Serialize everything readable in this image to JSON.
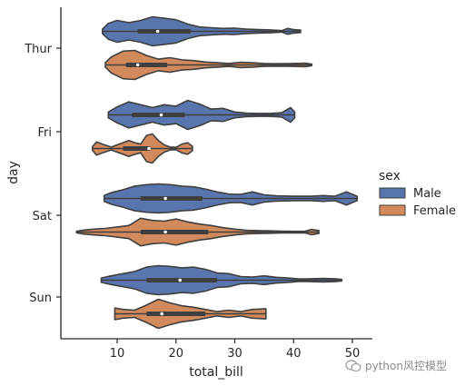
{
  "watermark": "python风控模型",
  "chart_data": {
    "type": "violin",
    "orientation": "horizontal",
    "xlabel": "total_bill",
    "ylabel": "day",
    "xlim": [
      1,
      52
    ],
    "x_ticks": [
      10,
      20,
      30,
      40,
      50
    ],
    "categories": [
      "Thur",
      "Fri",
      "Sat",
      "Sun"
    ],
    "hue_title": "sex",
    "legend_position": "right",
    "series": [
      {
        "name": "Male",
        "color": "#5875ad",
        "violins": [
          {
            "day": "Thur",
            "min": 7.5,
            "q1": 13.5,
            "median": 16.9,
            "q3": 22.5,
            "max": 41.2,
            "density": [
              [
                7.5,
                0.15
              ],
              [
                8.5,
                0.55
              ],
              [
                10,
                0.75
              ],
              [
                12,
                0.6
              ],
              [
                14,
                0.75
              ],
              [
                16,
                1.0
              ],
              [
                18,
                0.9
              ],
              [
                20,
                0.8
              ],
              [
                22,
                0.5
              ],
              [
                24,
                0.3
              ],
              [
                26,
                0.25
              ],
              [
                28,
                0.2
              ],
              [
                30,
                0.22
              ],
              [
                32,
                0.15
              ],
              [
                34,
                0.12
              ],
              [
                36,
                0.1
              ],
              [
                38,
                0.05
              ],
              [
                39,
                0.2
              ],
              [
                40,
                0.12
              ],
              [
                41.2,
                0.08
              ]
            ]
          },
          {
            "day": "Fri",
            "min": 8.5,
            "q1": 12.5,
            "median": 17.5,
            "q3": 21.5,
            "max": 40.2,
            "density": [
              [
                8.5,
                0.2
              ],
              [
                10,
                0.55
              ],
              [
                12,
                0.9
              ],
              [
                14,
                0.7
              ],
              [
                16,
                0.5
              ],
              [
                18,
                0.7
              ],
              [
                20,
                0.6
              ],
              [
                22,
                1.0
              ],
              [
                24,
                0.75
              ],
              [
                26,
                0.4
              ],
              [
                28,
                0.45
              ],
              [
                30,
                0.2
              ],
              [
                32,
                0.12
              ],
              [
                34,
                0.1
              ],
              [
                36,
                0.1
              ],
              [
                38,
                0.15
              ],
              [
                39.5,
                0.5
              ],
              [
                40.2,
                0.2
              ]
            ]
          },
          {
            "day": "Sat",
            "min": 7.8,
            "q1": 14,
            "median": 18.2,
            "q3": 24.5,
            "max": 50.8,
            "density": [
              [
                7.8,
                0.2
              ],
              [
                9,
                0.4
              ],
              [
                11,
                0.6
              ],
              [
                13,
                0.85
              ],
              [
                15,
                0.95
              ],
              [
                17,
                1.0
              ],
              [
                19,
                0.95
              ],
              [
                21,
                0.85
              ],
              [
                23,
                0.8
              ],
              [
                25,
                0.65
              ],
              [
                27,
                0.45
              ],
              [
                29,
                0.3
              ],
              [
                31,
                0.28
              ],
              [
                33,
                0.45
              ],
              [
                35,
                0.25
              ],
              [
                37,
                0.18
              ],
              [
                40,
                0.15
              ],
              [
                43,
                0.15
              ],
              [
                45,
                0.2
              ],
              [
                47,
                0.15
              ],
              [
                49,
                0.45
              ],
              [
                50.8,
                0.15
              ]
            ]
          },
          {
            "day": "Sun",
            "min": 7.3,
            "q1": 15,
            "median": 20.7,
            "q3": 27,
            "max": 48.2,
            "density": [
              [
                7.3,
                0.15
              ],
              [
                9,
                0.3
              ],
              [
                11,
                0.45
              ],
              [
                13,
                0.6
              ],
              [
                15,
                0.9
              ],
              [
                17,
                1.0
              ],
              [
                19,
                0.95
              ],
              [
                21,
                0.85
              ],
              [
                23,
                0.9
              ],
              [
                25,
                0.75
              ],
              [
                27,
                0.5
              ],
              [
                29,
                0.45
              ],
              [
                31,
                0.25
              ],
              [
                33,
                0.22
              ],
              [
                35,
                0.3
              ],
              [
                37,
                0.2
              ],
              [
                39,
                0.15
              ],
              [
                41,
                0.08
              ],
              [
                43,
                0.1
              ],
              [
                45,
                0.12
              ],
              [
                47,
                0.1
              ],
              [
                48.2,
                0.05
              ]
            ]
          }
        ]
      },
      {
        "name": "Female",
        "color": "#d28a5d",
        "violins": [
          {
            "day": "Thur",
            "min": 8,
            "q1": 11.5,
            "median": 13.5,
            "q3": 18.5,
            "max": 43.1,
            "density": [
              [
                8,
                0.15
              ],
              [
                9,
                0.55
              ],
              [
                11,
                0.95
              ],
              [
                13,
                1.0
              ],
              [
                15,
                0.65
              ],
              [
                17,
                0.4
              ],
              [
                19,
                0.5
              ],
              [
                21,
                0.35
              ],
              [
                23,
                0.3
              ],
              [
                25,
                0.2
              ],
              [
                27,
                0.15
              ],
              [
                29,
                0.1
              ],
              [
                31,
                0.18
              ],
              [
                33,
                0.15
              ],
              [
                35,
                0.1
              ],
              [
                37,
                0.08
              ],
              [
                40,
                0.1
              ],
              [
                42,
                0.12
              ],
              [
                43.1,
                0.05
              ]
            ]
          },
          {
            "day": "Fri",
            "min": 5.8,
            "q1": 11,
            "median": 15.4,
            "q3": 15.6,
            "max": 22.8,
            "density": [
              [
                5.8,
                0.12
              ],
              [
                6.5,
                0.45
              ],
              [
                7.5,
                0.3
              ],
              [
                9,
                0.1
              ],
              [
                11,
                0.4
              ],
              [
                12,
                0.55
              ],
              [
                13,
                0.4
              ],
              [
                14,
                0.3
              ],
              [
                15,
                0.9
              ],
              [
                16,
                1.0
              ],
              [
                17,
                0.55
              ],
              [
                18,
                0.25
              ],
              [
                19,
                0.1
              ],
              [
                20,
                0.08
              ],
              [
                21,
                0.3
              ],
              [
                22,
                0.4
              ],
              [
                22.8,
                0.15
              ]
            ]
          },
          {
            "day": "Sat",
            "min": 3.1,
            "q1": 14,
            "median": 18.2,
            "q3": 25.5,
            "max": 44.3,
            "density": [
              [
                3.1,
                0.05
              ],
              [
                4,
                0.12
              ],
              [
                6,
                0.2
              ],
              [
                8,
                0.25
              ],
              [
                10,
                0.35
              ],
              [
                12,
                0.45
              ],
              [
                14,
                0.95
              ],
              [
                16,
                0.8
              ],
              [
                18,
                0.75
              ],
              [
                20,
                0.9
              ],
              [
                22,
                0.7
              ],
              [
                24,
                0.55
              ],
              [
                26,
                0.45
              ],
              [
                28,
                0.3
              ],
              [
                30,
                0.2
              ],
              [
                32,
                0.12
              ],
              [
                34,
                0.1
              ],
              [
                36,
                0.08
              ],
              [
                38,
                0.06
              ],
              [
                40,
                0.05
              ],
              [
                42,
                0.06
              ],
              [
                43,
                0.18
              ],
              [
                44.3,
                0.1
              ]
            ]
          },
          {
            "day": "Sun",
            "min": 9.6,
            "q1": 15,
            "median": 17.6,
            "q3": 25,
            "max": 35.3,
            "density": [
              [
                9.6,
                0.4
              ],
              [
                11,
                0.3
              ],
              [
                13,
                0.25
              ],
              [
                15,
                0.6
              ],
              [
                17,
                1.0
              ],
              [
                19,
                0.75
              ],
              [
                21,
                0.55
              ],
              [
                23,
                0.45
              ],
              [
                25,
                0.3
              ],
              [
                27,
                0.15
              ],
              [
                29,
                0.25
              ],
              [
                31,
                0.15
              ],
              [
                33,
                0.3
              ],
              [
                35.3,
                0.35
              ]
            ]
          }
        ]
      }
    ]
  }
}
